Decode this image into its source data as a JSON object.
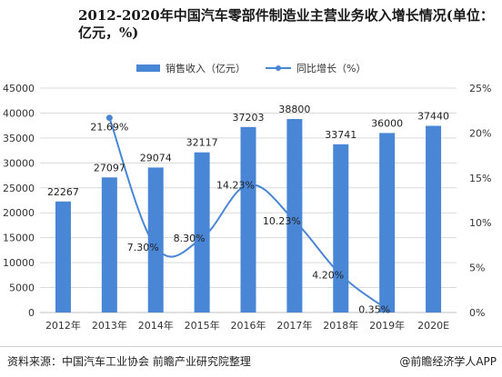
{
  "header": {
    "title": "2012-2020年中国汽车零部件制造业主营业务收入增长情况(单位：亿元，%)"
  },
  "footer": {
    "source": "资料来源：中国汽车工业协会 前瞻产业研究院整理",
    "brand": "@前瞻经济学人APP",
    "brand_icon": "at-icon"
  },
  "colors": {
    "bar": "#4a86d6",
    "line": "#4a86d6",
    "grid": "#d9d9d9",
    "text": "#333333"
  },
  "chart_data": {
    "type": "bar",
    "categories": [
      "2012年",
      "2013年",
      "2014年",
      "2015年",
      "2016年",
      "2017年",
      "2018年",
      "2019年",
      "2020E"
    ],
    "series": [
      {
        "name": "销售收入（亿元）",
        "type": "bar",
        "axis": "left",
        "values": [
          22267,
          27097,
          29074,
          32117,
          37203,
          38800,
          33741,
          36000,
          37440
        ],
        "labels": [
          "22267",
          "27097",
          "29074",
          "32117",
          "37203",
          "38800",
          "33741",
          "36000",
          "37440"
        ]
      },
      {
        "name": "同比增长（%）",
        "type": "line",
        "axis": "right",
        "values": [
          null,
          21.69,
          7.3,
          8.3,
          14.23,
          10.23,
          4.2,
          0.35,
          null
        ],
        "labels": [
          null,
          "21.69%",
          "7.30%",
          "8.30%",
          "14.23%",
          "10.23%",
          "4.20%",
          "0.35%",
          null
        ]
      }
    ],
    "y_left": {
      "range": [
        0,
        45000
      ],
      "ticks": [
        0,
        5000,
        10000,
        15000,
        20000,
        25000,
        30000,
        35000,
        40000,
        45000
      ],
      "tick_labels": [
        "0",
        "5000",
        "10000",
        "15000",
        "20000",
        "25000",
        "30000",
        "35000",
        "40000",
        "45000"
      ]
    },
    "y_right": {
      "range": [
        0,
        25
      ],
      "ticks": [
        0,
        5,
        10,
        15,
        20,
        25
      ],
      "tick_labels": [
        "0%",
        "5%",
        "10%",
        "15%",
        "20%",
        "25%"
      ]
    },
    "grid": true,
    "legend_position": "top-center"
  }
}
